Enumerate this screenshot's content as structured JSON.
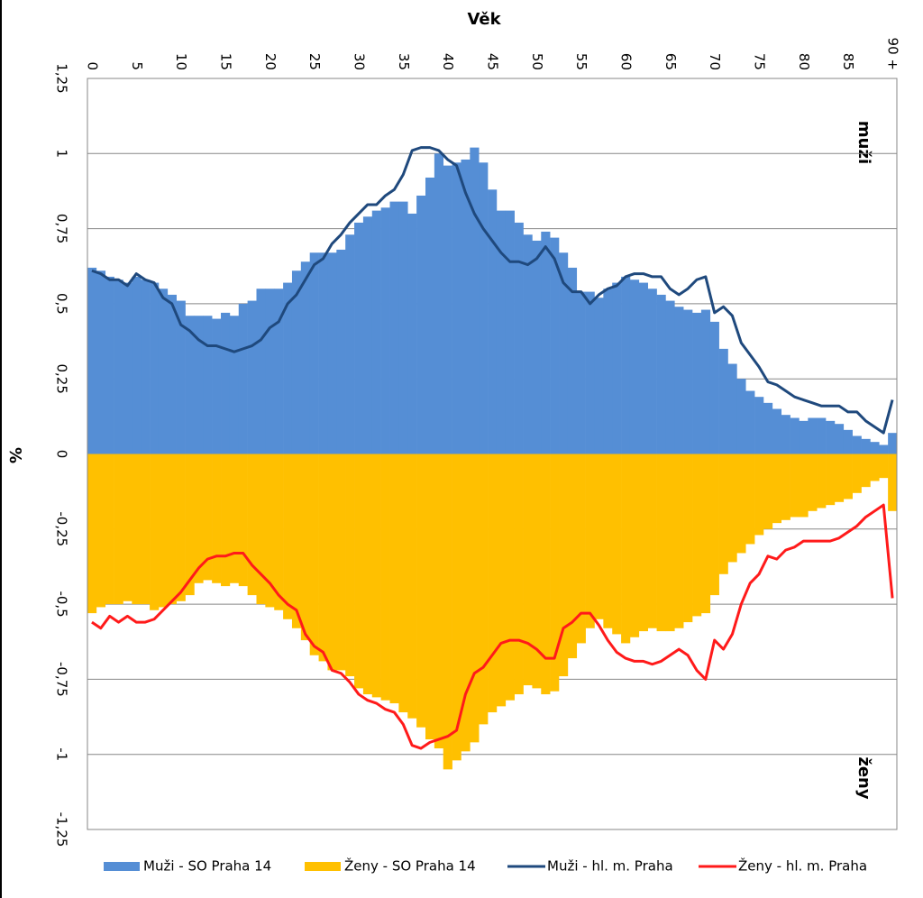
{
  "chart_data": {
    "type": "pyramid",
    "x_label": "Věk",
    "y_label": "%",
    "annotations": [
      "muži",
      "ženy"
    ],
    "categories": [
      "0",
      null,
      null,
      null,
      null,
      "5",
      null,
      null,
      null,
      null,
      "10",
      null,
      null,
      null,
      null,
      "15",
      null,
      null,
      null,
      null,
      "20",
      null,
      null,
      null,
      null,
      "25",
      null,
      null,
      null,
      null,
      "30",
      null,
      null,
      null,
      null,
      "35",
      null,
      null,
      null,
      null,
      "40",
      null,
      null,
      null,
      null,
      "45",
      null,
      null,
      null,
      null,
      "50",
      null,
      null,
      null,
      null,
      "55",
      null,
      null,
      null,
      null,
      "60",
      null,
      null,
      null,
      null,
      "65",
      null,
      null,
      null,
      null,
      "70",
      null,
      null,
      null,
      null,
      "75",
      null,
      null,
      null,
      null,
      "80",
      null,
      null,
      null,
      null,
      "85",
      null,
      null,
      null,
      null,
      "90 +"
    ],
    "ylim": [
      -1.25,
      1.25
    ],
    "yticks": [
      {
        "value": 1.25,
        "label": "1,25"
      },
      1,
      {
        "value": 0.75,
        "label": "0,75"
      },
      {
        "value": 0.5,
        "label": "0,5"
      },
      {
        "value": 0.25,
        "label": "0,25"
      },
      0,
      {
        "value": -0.25,
        "label": "-0,25"
      },
      {
        "value": -0.5,
        "label": "-0,5"
      },
      {
        "value": -0.75,
        "label": "-0,75"
      },
      -1,
      {
        "value": -1.25,
        "label": "-1,25"
      }
    ],
    "grid": true,
    "series": [
      {
        "name": "Muži - SO Praha 14",
        "kind": "bar",
        "color": "#558ed5",
        "values": [
          0.62,
          0.61,
          0.59,
          0.58,
          0.57,
          0.59,
          0.58,
          0.57,
          0.55,
          0.53,
          0.51,
          0.46,
          0.46,
          0.46,
          0.45,
          0.47,
          0.46,
          0.5,
          0.51,
          0.55,
          0.55,
          0.55,
          0.57,
          0.61,
          0.64,
          0.67,
          0.67,
          0.67,
          0.68,
          0.73,
          0.77,
          0.79,
          0.81,
          0.82,
          0.84,
          0.84,
          0.8,
          0.86,
          0.92,
          1.0,
          0.96,
          0.97,
          0.98,
          1.02,
          0.97,
          0.88,
          0.81,
          0.81,
          0.77,
          0.73,
          0.71,
          0.74,
          0.72,
          0.67,
          0.62,
          0.54,
          0.54,
          0.52,
          0.55,
          0.57,
          0.59,
          0.58,
          0.57,
          0.55,
          0.53,
          0.51,
          0.49,
          0.48,
          0.47,
          0.48,
          0.44,
          0.35,
          0.3,
          0.25,
          0.21,
          0.19,
          0.17,
          0.15,
          0.13,
          0.12,
          0.11,
          0.12,
          0.12,
          0.11,
          0.1,
          0.08,
          0.06,
          0.05,
          0.04,
          0.03,
          0.07
        ]
      },
      {
        "name": "Ženy - SO Praha 14",
        "kind": "bar",
        "color": "#ffc000",
        "values": [
          -0.53,
          -0.51,
          -0.5,
          -0.5,
          -0.49,
          -0.5,
          -0.5,
          -0.52,
          -0.51,
          -0.5,
          -0.49,
          -0.47,
          -0.43,
          -0.42,
          -0.43,
          -0.44,
          -0.43,
          -0.44,
          -0.47,
          -0.5,
          -0.51,
          -0.52,
          -0.55,
          -0.58,
          -0.62,
          -0.67,
          -0.69,
          -0.72,
          -0.72,
          -0.74,
          -0.78,
          -0.8,
          -0.81,
          -0.82,
          -0.83,
          -0.86,
          -0.88,
          -0.91,
          -0.95,
          -0.98,
          -1.05,
          -1.02,
          -0.99,
          -0.96,
          -0.9,
          -0.86,
          -0.84,
          -0.82,
          -0.8,
          -0.77,
          -0.78,
          -0.8,
          -0.79,
          -0.74,
          -0.68,
          -0.63,
          -0.58,
          -0.55,
          -0.58,
          -0.6,
          -0.63,
          -0.61,
          -0.59,
          -0.58,
          -0.59,
          -0.59,
          -0.58,
          -0.56,
          -0.54,
          -0.53,
          -0.47,
          -0.4,
          -0.36,
          -0.33,
          -0.3,
          -0.27,
          -0.25,
          -0.23,
          -0.22,
          -0.21,
          -0.21,
          -0.19,
          -0.18,
          -0.17,
          -0.16,
          -0.15,
          -0.13,
          -0.11,
          -0.09,
          -0.08,
          -0.19
        ]
      },
      {
        "name": "Muži - hl. m. Praha",
        "kind": "line",
        "color": "#1f497d",
        "values": [
          0.61,
          0.6,
          0.58,
          0.58,
          0.56,
          0.6,
          0.58,
          0.57,
          0.52,
          0.5,
          0.43,
          0.41,
          0.38,
          0.36,
          0.36,
          0.35,
          0.34,
          0.35,
          0.36,
          0.38,
          0.42,
          0.44,
          0.5,
          0.53,
          0.58,
          0.63,
          0.65,
          0.7,
          0.73,
          0.77,
          0.8,
          0.83,
          0.83,
          0.86,
          0.88,
          0.93,
          1.01,
          1.02,
          1.02,
          1.01,
          0.98,
          0.96,
          0.87,
          0.8,
          0.75,
          0.71,
          0.67,
          0.64,
          0.64,
          0.63,
          0.65,
          0.69,
          0.65,
          0.57,
          0.54,
          0.54,
          0.5,
          0.53,
          0.55,
          0.56,
          0.59,
          0.6,
          0.6,
          0.59,
          0.59,
          0.55,
          0.53,
          0.55,
          0.58,
          0.59,
          0.47,
          0.49,
          0.46,
          0.37,
          0.33,
          0.29,
          0.24,
          0.23,
          0.21,
          0.19,
          0.18,
          0.17,
          0.16,
          0.16,
          0.16,
          0.14,
          0.14,
          0.11,
          0.09,
          0.07,
          0.18
        ]
      },
      {
        "name": "Ženy - hl. m. Praha",
        "kind": "line",
        "color": "#ff1a1a",
        "values": [
          -0.56,
          -0.58,
          -0.54,
          -0.56,
          -0.54,
          -0.56,
          -0.56,
          -0.55,
          -0.52,
          -0.49,
          -0.46,
          -0.42,
          -0.38,
          -0.35,
          -0.34,
          -0.34,
          -0.33,
          -0.33,
          -0.37,
          -0.4,
          -0.43,
          -0.47,
          -0.5,
          -0.52,
          -0.6,
          -0.64,
          -0.66,
          -0.72,
          -0.73,
          -0.76,
          -0.8,
          -0.82,
          -0.83,
          -0.85,
          -0.86,
          -0.9,
          -0.97,
          -0.98,
          -0.96,
          -0.95,
          -0.94,
          -0.92,
          -0.8,
          -0.73,
          -0.71,
          -0.67,
          -0.63,
          -0.62,
          -0.62,
          -0.63,
          -0.65,
          -0.68,
          -0.68,
          -0.58,
          -0.56,
          -0.53,
          -0.53,
          -0.57,
          -0.62,
          -0.66,
          -0.68,
          -0.69,
          -0.69,
          -0.7,
          -0.69,
          -0.67,
          -0.65,
          -0.67,
          -0.72,
          -0.75,
          -0.62,
          -0.65,
          -0.6,
          -0.5,
          -0.43,
          -0.4,
          -0.34,
          -0.35,
          -0.32,
          -0.31,
          -0.29,
          -0.29,
          -0.29,
          -0.29,
          -0.28,
          -0.26,
          -0.24,
          -0.21,
          -0.19,
          -0.17,
          -0.48
        ]
      }
    ]
  }
}
